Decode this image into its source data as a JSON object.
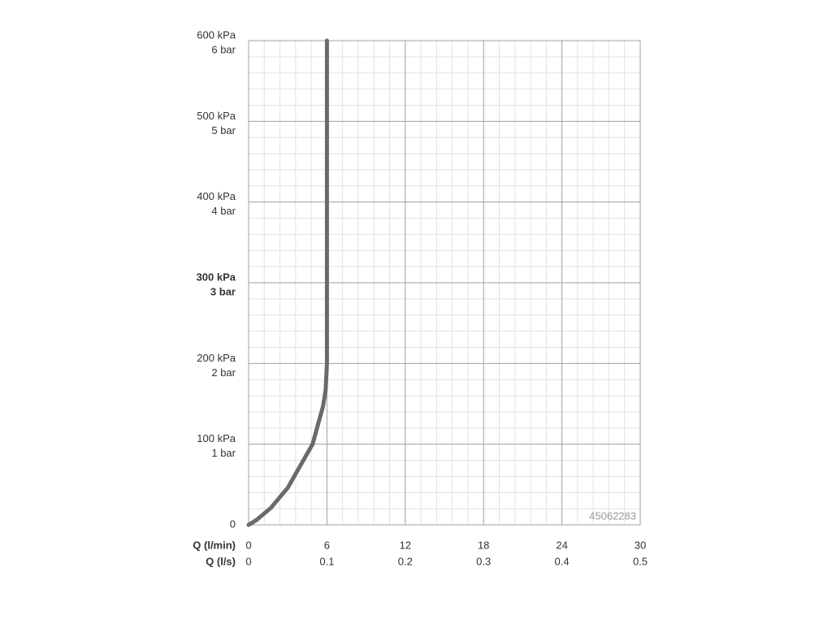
{
  "chart_data": {
    "type": "line",
    "x_label": "Q (l/min)",
    "x2_label": "Q (l/s)",
    "series": [
      {
        "color": "#6a6a6a",
        "x": [
          0,
          0.6,
          1.7,
          3.0,
          3.7,
          4.9,
          5.7,
          5.9,
          6,
          6
        ],
        "values": [
          0,
          6,
          21,
          46,
          66,
          100,
          147,
          167,
          200,
          600
        ]
      }
    ],
    "xlim": [
      0,
      30
    ],
    "xticks": [
      0,
      6,
      12,
      18,
      24,
      30
    ],
    "x2ticks": [
      {
        "value": 0,
        "label": "0"
      },
      {
        "value": 6,
        "label": "0.1"
      },
      {
        "value": 12,
        "label": "0.2"
      },
      {
        "value": 18,
        "label": "0.3"
      },
      {
        "value": 24,
        "label": "0.4"
      },
      {
        "value": 30,
        "label": "0.5"
      }
    ],
    "ylim": [
      0,
      600
    ],
    "yticks": [
      {
        "value": 0,
        "label": "0"
      },
      {
        "value": 100,
        "label": "100 kPa"
      },
      {
        "value": 200,
        "label": "200 kPa"
      },
      {
        "value": 300,
        "label": "300 kPa"
      },
      {
        "value": 400,
        "label": "400 kPa"
      },
      {
        "value": 500,
        "label": "500 kPa"
      },
      {
        "value": 600,
        "label": "600 kPa"
      }
    ],
    "yticks_secondary": [
      {
        "value": 100,
        "label": "1 bar"
      },
      {
        "value": 200,
        "label": "2 bar"
      },
      {
        "value": 300,
        "label": "3 bar"
      },
      {
        "value": 400,
        "label": "4 bar"
      },
      {
        "value": 500,
        "label": "5 bar"
      },
      {
        "value": 600,
        "label": "6 bar"
      }
    ],
    "emphasized_ytick": 300,
    "grid": true,
    "minor_grid": true,
    "annotation": "45062283"
  }
}
